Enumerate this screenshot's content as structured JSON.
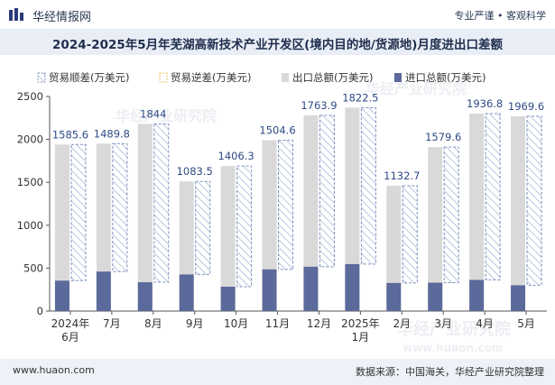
{
  "header": {
    "brand": "华经情报网",
    "slogan": "专业严谨 • 客观科学"
  },
  "chart_data": {
    "type": "bar",
    "title": "2024-2025年5月年芜湖高新技术产业开发区(境内目的地/货源地)月度进出口差额",
    "categories": [
      "2024年6月",
      "7月",
      "8月",
      "9月",
      "10月",
      "11月",
      "12月",
      "2025年1月",
      "2月",
      "3月",
      "4月",
      "5月"
    ],
    "category_lines": [
      [
        "2024年",
        "6月"
      ],
      [
        "7月"
      ],
      [
        "8月"
      ],
      [
        "9月"
      ],
      [
        "10月"
      ],
      [
        "11月"
      ],
      [
        "12月"
      ],
      [
        "2025年",
        "1月"
      ],
      [
        "2月"
      ],
      [
        "3月"
      ],
      [
        "4月"
      ],
      [
        "5月"
      ]
    ],
    "series": [
      {
        "name": "贸易顺差(万美元)",
        "kind": "surplus",
        "values": [
          1585.6,
          1489.8,
          1844,
          1083.5,
          1406.3,
          1504.6,
          1763.9,
          1822.5,
          1132.7,
          1579.6,
          1936.8,
          1969.6
        ]
      },
      {
        "name": "贸易逆差(万美元)",
        "kind": "deficit",
        "values": [
          0,
          0,
          0,
          0,
          0,
          0,
          0,
          0,
          0,
          0,
          0,
          0
        ]
      },
      {
        "name": "出口总额(万美元)",
        "kind": "export",
        "values": [
          1940,
          1950,
          2180,
          1510,
          1690,
          1990,
          2280,
          2370,
          1460,
          1910,
          2300,
          2270
        ]
      },
      {
        "name": "进口总额(万美元)",
        "kind": "import",
        "values": [
          354.4,
          460.2,
          336,
          426.5,
          283.7,
          485.4,
          516.1,
          547.5,
          327.3,
          330.4,
          363.2,
          300.4
        ]
      }
    ],
    "value_labels": [
      "1585.6",
      "1489.8",
      "1844",
      "1083.5",
      "1406.3",
      "1504.6",
      "1763.9",
      "1822.5",
      "1132.7",
      "1579.6",
      "1936.8",
      "1969.6"
    ],
    "ylim": [
      0,
      2500
    ],
    "yticks": [
      0,
      500,
      1000,
      1500,
      2000,
      2500
    ],
    "grid": false,
    "legend_position": "top-left",
    "colors": {
      "export": "#d9d9d9",
      "import": "#5b6a9a",
      "surplus_border": "#7c8fbe",
      "hatch": "#a9b7d8",
      "deficit": "#e3c04a",
      "axis": "#555555"
    }
  },
  "watermark": "华经产业研究院",
  "watermark_url": "www.huaon.com",
  "footer": {
    "url": "www.huaon.com",
    "source": "数据来源：中国海关，华经产业研究院整理"
  }
}
